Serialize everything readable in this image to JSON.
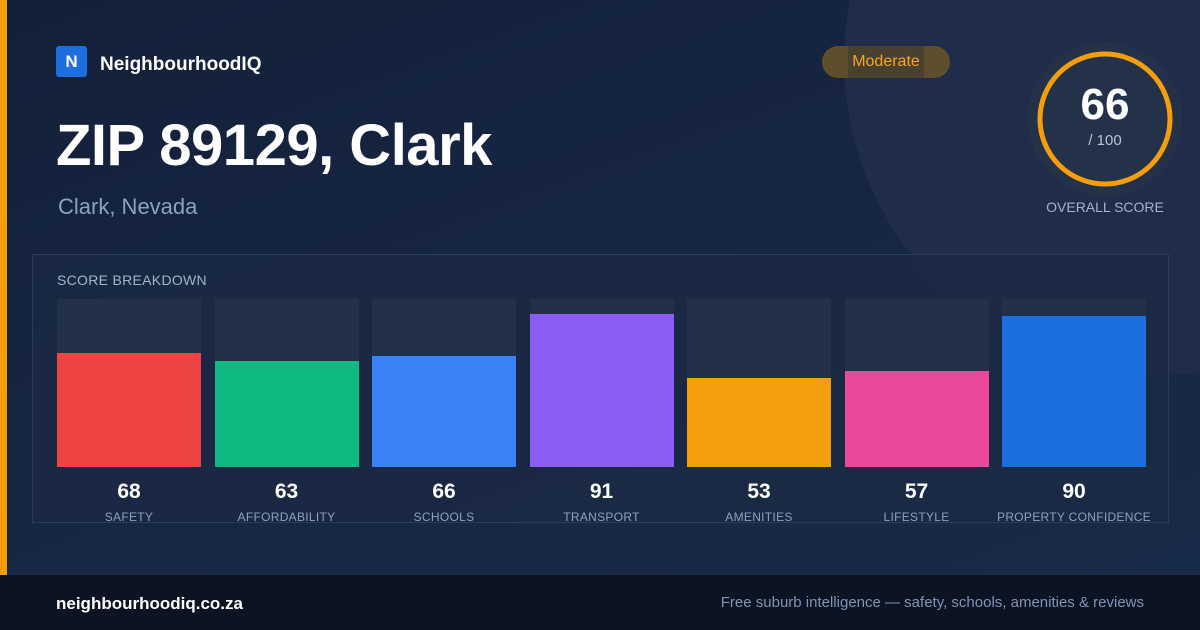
{
  "brand": {
    "logo_letter": "N",
    "name": "NeighbourhoodIQ"
  },
  "badge": {
    "label": "Moderate"
  },
  "location": {
    "title": "ZIP 89129, Clark",
    "subtitle": "Clark, Nevada"
  },
  "overall": {
    "score": "66",
    "max": "/ 100",
    "label": "OVERALL SCORE",
    "fraction": 0.66,
    "ring_color": "#f59e0b"
  },
  "breakdown": {
    "title": "SCORE BREAKDOWN",
    "items": [
      {
        "label": "SAFETY",
        "value": "68",
        "score": 68,
        "color": "#ef4444"
      },
      {
        "label": "AFFORDABILITY",
        "value": "63",
        "score": 63,
        "color": "#10b981"
      },
      {
        "label": "SCHOOLS",
        "value": "66",
        "score": 66,
        "color": "#3b82f6"
      },
      {
        "label": "TRANSPORT",
        "value": "91",
        "score": 91,
        "color": "#8b5cf6"
      },
      {
        "label": "AMENITIES",
        "value": "53",
        "score": 53,
        "color": "#f59e0b"
      },
      {
        "label": "LIFESTYLE",
        "value": "57",
        "score": 57,
        "color": "#ec4899"
      },
      {
        "label": "PROPERTY CONFIDENCE",
        "value": "90",
        "score": 90,
        "color": "#1d6fe0"
      }
    ]
  },
  "footer": {
    "domain": "neighbourhoodiq.co.za",
    "tagline": "Free suburb intelligence — safety, schools, amenities & reviews"
  }
}
